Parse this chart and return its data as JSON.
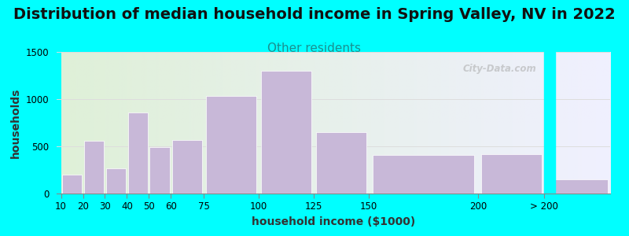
{
  "title": "Distribution of median household income in Spring Valley, NV in 2022",
  "subtitle": "Other residents",
  "xlabel": "household income ($1000)",
  "ylabel": "households",
  "background_color": "#00FFFF",
  "bar_color": "#c8b8d8",
  "categories": [
    "10",
    "20",
    "30",
    "40",
    "50",
    "60",
    "75",
    "100",
    "125",
    "150",
    "200",
    "> 200"
  ],
  "values": [
    200,
    560,
    265,
    860,
    490,
    570,
    1030,
    1300,
    650,
    410,
    420,
    150
  ],
  "ylim": [
    0,
    1500
  ],
  "yticks": [
    0,
    500,
    1000,
    1500
  ],
  "title_fontsize": 14,
  "subtitle_fontsize": 11,
  "subtitle_color": "#1a9090",
  "axis_label_fontsize": 10,
  "watermark": "City-Data.com",
  "grid_color": "#dddddd",
  "left_bg_color": "#dff0d8",
  "right_bg_color": "#f0f0ff"
}
